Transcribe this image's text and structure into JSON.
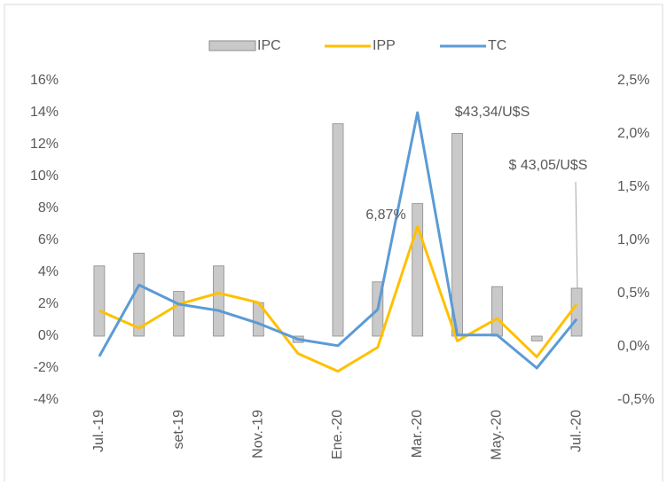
{
  "chart_data": {
    "type": "bar_line",
    "categories": [
      "Jul.-19",
      null,
      "set-19",
      null,
      "Nov.-19",
      null,
      "Ene.-20",
      null,
      "Mar.-20",
      null,
      "May.-20",
      null,
      "Jul.-20"
    ],
    "series": [
      {
        "name": "IPC",
        "type": "bar",
        "color": "#c9c9c9",
        "values": [
          4.4,
          5.2,
          2.8,
          4.4,
          2.1,
          -0.4,
          13.3,
          3.4,
          8.3,
          12.7,
          3.1,
          -0.3,
          3.0
        ]
      },
      {
        "name": "IPP",
        "type": "line",
        "color": "#ffc000",
        "values": [
          1.6,
          0.5,
          2.0,
          2.7,
          2.1,
          -1.1,
          -2.2,
          -0.7,
          6.87,
          -0.3,
          1.1,
          -1.3,
          2.0
        ]
      },
      {
        "name": "TC",
        "type": "line",
        "axis": "y2",
        "color": "#5b9bd5",
        "values": [
          -0.09,
          0.58,
          0.4,
          0.34,
          0.22,
          0.07,
          0.01,
          0.35,
          2.2,
          0.11,
          0.11,
          -0.2,
          0.26
        ]
      }
    ],
    "ylim": [
      -4,
      16
    ],
    "yticks": [
      {
        "value": -4,
        "label": "-4%"
      },
      {
        "value": -2,
        "label": "-2%"
      },
      {
        "value": 0,
        "label": "0%"
      },
      {
        "value": 2,
        "label": "2%"
      },
      {
        "value": 4,
        "label": "4%"
      },
      {
        "value": 6,
        "label": "6%"
      },
      {
        "value": 8,
        "label": "8%"
      },
      {
        "value": 10,
        "label": "10%"
      },
      {
        "value": 12,
        "label": "12%"
      },
      {
        "value": 14,
        "label": "14%"
      },
      {
        "value": 16,
        "label": "16%"
      }
    ],
    "y2lim": [
      -0.5,
      2.5
    ],
    "y2ticks": [
      {
        "value": -0.5,
        "label": "-0,5%"
      },
      {
        "value": 0,
        "label": "0,0%"
      },
      {
        "value": 0.5,
        "label": "0,5%"
      },
      {
        "value": 1,
        "label": "1,0%"
      },
      {
        "value": 1.5,
        "label": "1,5%"
      },
      {
        "value": 2,
        "label": "2,0%"
      },
      {
        "value": 2.5,
        "label": "2,5%"
      }
    ],
    "annotations": [
      "$43,34/U$S",
      "$ 43,05/U$S",
      "6,87%"
    ],
    "legend": "top"
  }
}
